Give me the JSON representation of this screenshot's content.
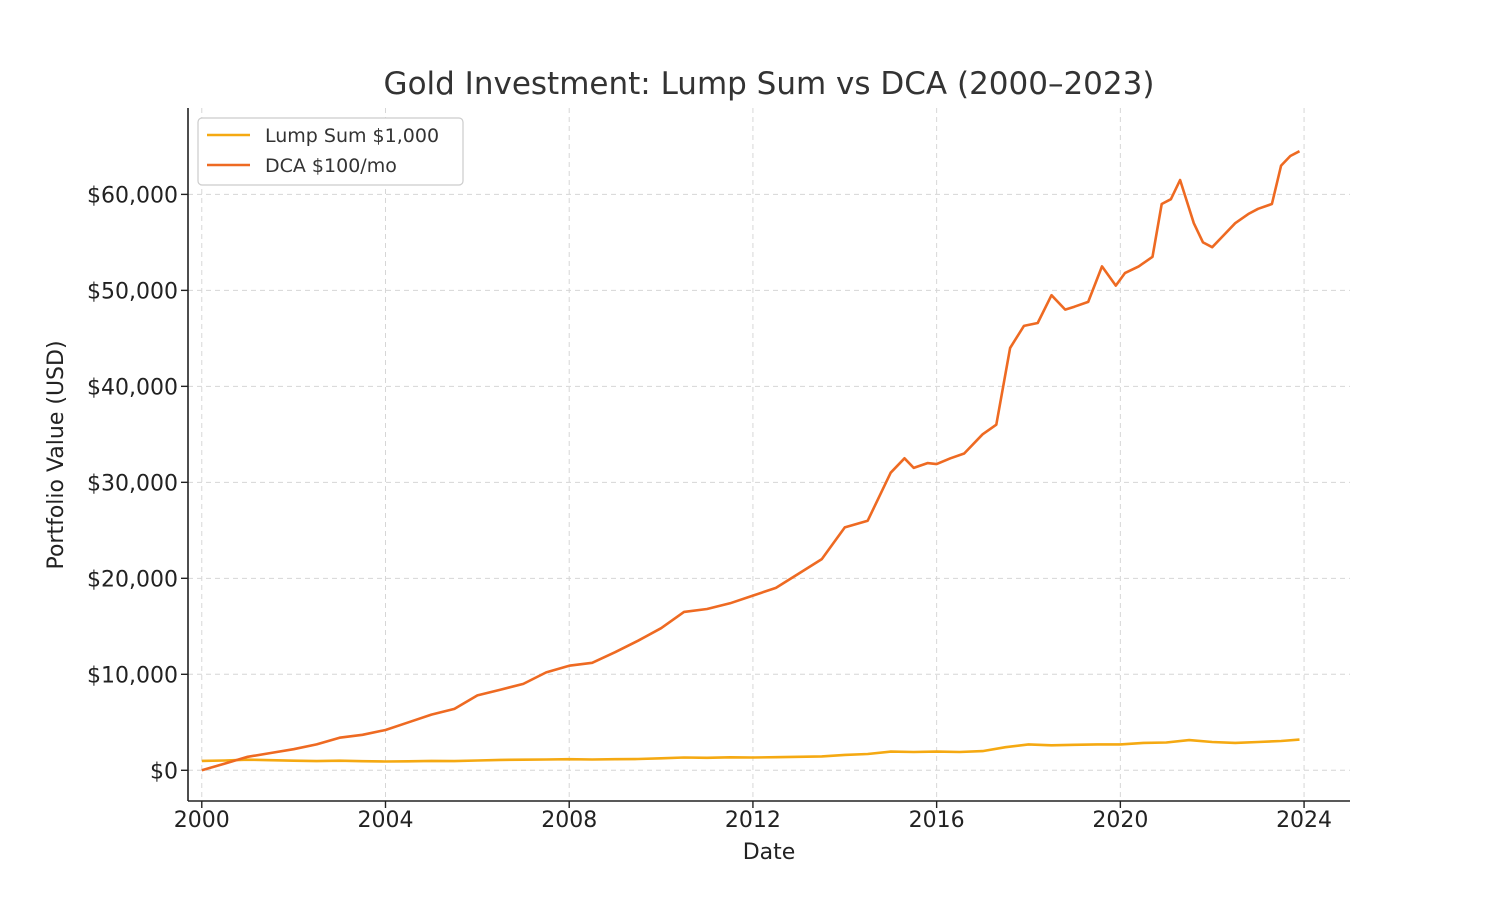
{
  "chart_data": {
    "type": "line",
    "title": "Gold Investment: Lump Sum vs DCA (2000–2023)",
    "xlabel": "Date",
    "ylabel": "Portfolio Value (USD)",
    "xlim": [
      1999.7,
      2025.0
    ],
    "ylim": [
      -3200,
      69000
    ],
    "x_ticks": [
      2000,
      2004,
      2008,
      2012,
      2016,
      2020,
      2024
    ],
    "x_tick_labels": [
      "2000",
      "2004",
      "2008",
      "2012",
      "2016",
      "2020",
      "2024"
    ],
    "y_ticks": [
      0,
      10000,
      20000,
      30000,
      40000,
      50000,
      60000
    ],
    "y_tick_labels": [
      "$0",
      "$10,000",
      "$20,000",
      "$30,000",
      "$40,000",
      "$50,000",
      "$60,000"
    ],
    "grid": true,
    "legend_position": "top-left",
    "series": [
      {
        "name": "Lump Sum $1,000",
        "color": "#f5a912",
        "x": [
          2000.0,
          2000.5,
          2001.0,
          2001.5,
          2002.0,
          2002.5,
          2003.0,
          2003.5,
          2004.0,
          2004.5,
          2005.0,
          2005.5,
          2006.0,
          2006.5,
          2007.0,
          2007.5,
          2008.0,
          2008.5,
          2009.0,
          2009.5,
          2010.0,
          2010.5,
          2011.0,
          2011.5,
          2012.0,
          2012.5,
          2013.0,
          2013.5,
          2014.0,
          2014.5,
          2015.0,
          2015.5,
          2016.0,
          2016.5,
          2017.0,
          2017.5,
          2018.0,
          2018.5,
          2019.0,
          2019.5,
          2020.0,
          2020.5,
          2021.0,
          2021.5,
          2022.0,
          2022.5,
          2023.0,
          2023.5,
          2023.9
        ],
        "values": [
          980,
          1020,
          1100,
          1050,
          1000,
          960,
          1000,
          950,
          920,
          940,
          980,
          960,
          1020,
          1080,
          1100,
          1120,
          1150,
          1120,
          1150,
          1180,
          1250,
          1330,
          1300,
          1350,
          1330,
          1360,
          1400,
          1450,
          1600,
          1700,
          1950,
          1900,
          1950,
          1900,
          2000,
          2400,
          2700,
          2600,
          2650,
          2700,
          2700,
          2850,
          2900,
          3150,
          2950,
          2850,
          2950,
          3050,
          3200
        ]
      },
      {
        "name": "DCA $100/mo",
        "color": "#ee6a22",
        "x": [
          2000.0,
          2000.5,
          2001.0,
          2001.5,
          2002.0,
          2002.5,
          2003.0,
          2003.5,
          2004.0,
          2004.5,
          2005.0,
          2005.5,
          2006.0,
          2006.5,
          2007.0,
          2007.5,
          2008.0,
          2008.5,
          2009.0,
          2009.5,
          2010.0,
          2010.5,
          2011.0,
          2011.5,
          2012.0,
          2012.5,
          2013.0,
          2013.5,
          2014.0,
          2014.5,
          2015.0,
          2015.3,
          2015.5,
          2015.8,
          2016.0,
          2016.3,
          2016.6,
          2017.0,
          2017.3,
          2017.6,
          2017.9,
          2018.2,
          2018.5,
          2018.8,
          2019.0,
          2019.3,
          2019.6,
          2019.9,
          2020.1,
          2020.4,
          2020.7,
          2020.9,
          2021.1,
          2021.3,
          2021.6,
          2021.8,
          2022.0,
          2022.2,
          2022.5,
          2022.8,
          2023.0,
          2023.3,
          2023.5,
          2023.7,
          2023.9
        ],
        "values": [
          0,
          700,
          1400,
          1800,
          2200,
          2700,
          3400,
          3700,
          4200,
          5000,
          5800,
          6400,
          7800,
          8400,
          9000,
          10200,
          10900,
          11200,
          12300,
          13500,
          14800,
          16500,
          16800,
          17400,
          18200,
          19000,
          20500,
          22000,
          25300,
          26000,
          31000,
          32500,
          31500,
          32000,
          31900,
          32500,
          33000,
          35000,
          36000,
          44000,
          46300,
          46600,
          49500,
          48000,
          48300,
          48800,
          52500,
          50500,
          51800,
          52500,
          53500,
          59000,
          59500,
          61500,
          57000,
          55000,
          54500,
          55500,
          57000,
          58000,
          58500,
          59000,
          63000,
          64000,
          64500
        ]
      }
    ]
  }
}
